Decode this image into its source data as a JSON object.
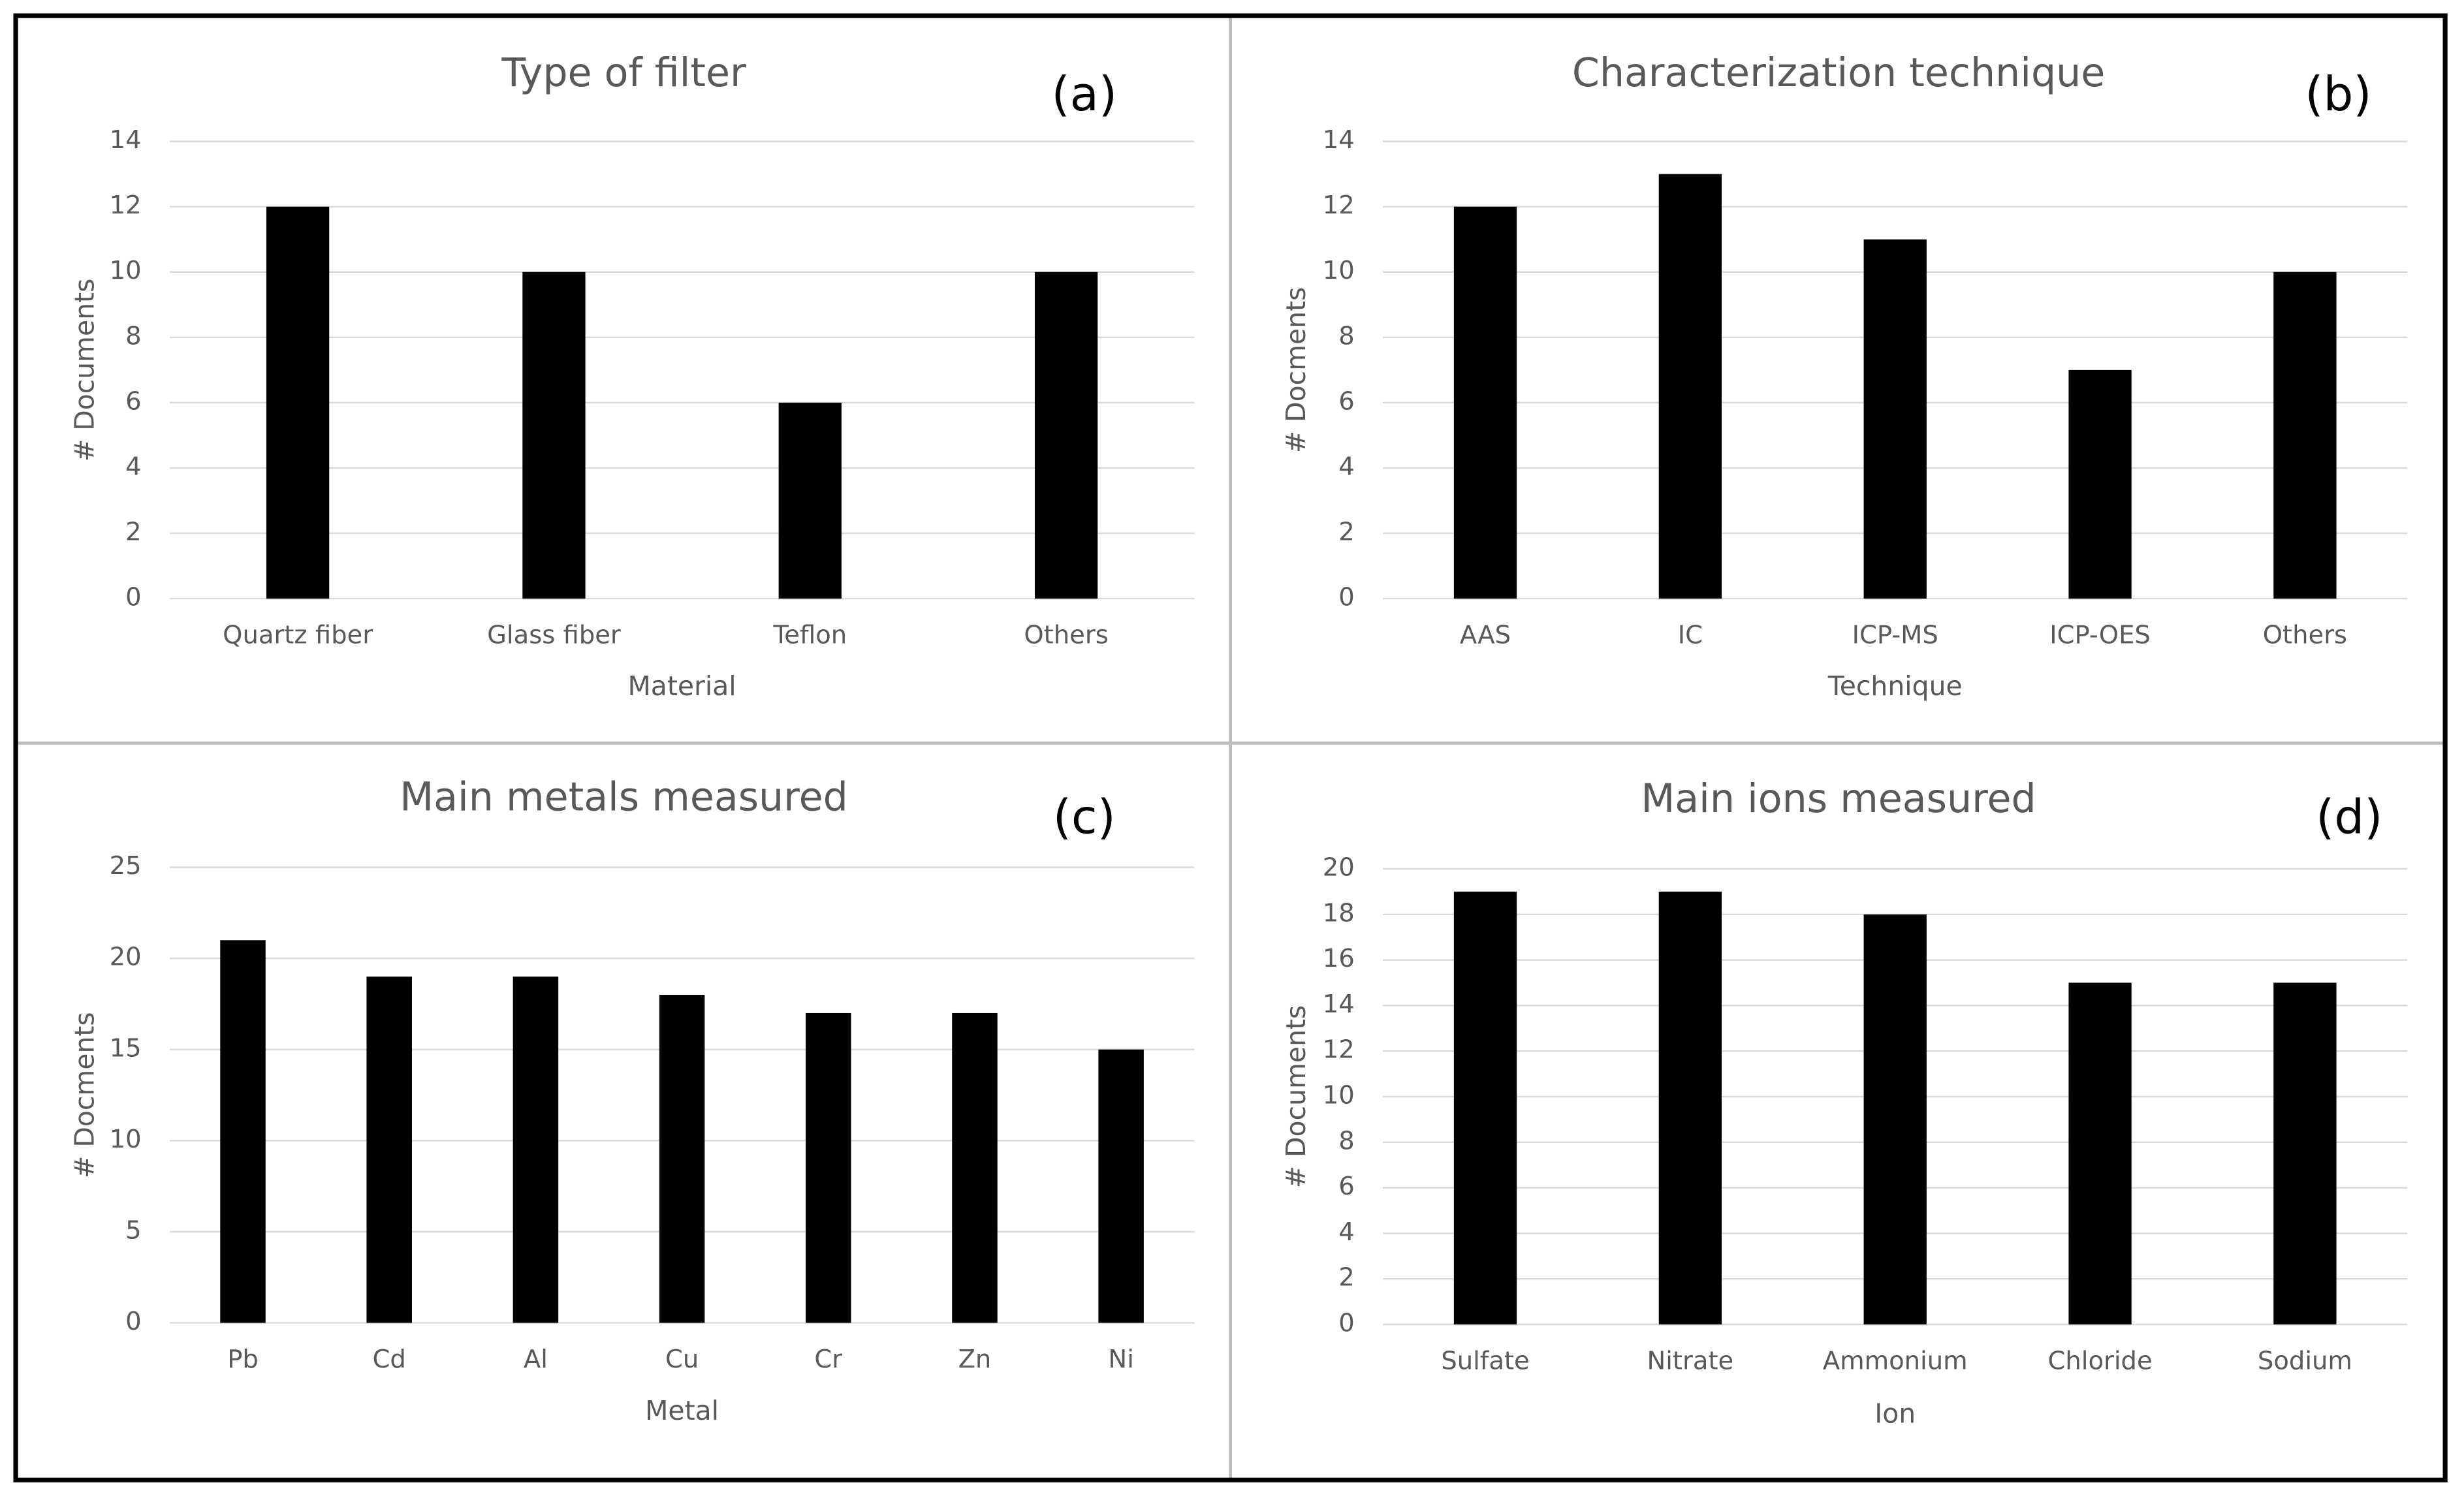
{
  "chart_data": [
    {
      "type": "bar",
      "title": "Type of filter",
      "label": "(a)",
      "x_label": "Material",
      "y_label": "# Documents",
      "categories": [
        "Quartz fiber",
        "Glass fiber",
        "Teflon",
        "Others"
      ],
      "values": [
        12,
        10,
        6,
        10
      ],
      "color": "#000000",
      "ylim": [
        0,
        14
      ],
      "yticks": [
        0,
        2,
        4,
        6,
        8,
        10,
        12,
        14
      ],
      "grid": true
    },
    {
      "type": "bar",
      "title": "Characterization technique",
      "label": "(b)",
      "x_label": "Technique",
      "y_label": "# Docments",
      "categories": [
        "AAS",
        "IC",
        "ICP-MS",
        "ICP-OES",
        "Others"
      ],
      "values": [
        12,
        13,
        11,
        7,
        10
      ],
      "color": "#000000",
      "ylim": [
        0,
        14
      ],
      "yticks": [
        0,
        2,
        4,
        6,
        8,
        10,
        12,
        14
      ],
      "grid": true
    },
    {
      "type": "bar",
      "title": "Main metals measured",
      "label": "(c)",
      "x_label": "Metal",
      "y_label": "# Docments",
      "categories": [
        "Pb",
        "Cd",
        "Al",
        "Cu",
        "Cr",
        "Zn",
        "Ni"
      ],
      "values": [
        21,
        19,
        19,
        18,
        17,
        17,
        15
      ],
      "color": "#000000",
      "ylim": [
        0,
        25
      ],
      "yticks": [
        0,
        5,
        10,
        15,
        20,
        25
      ],
      "grid": true
    },
    {
      "type": "bar",
      "title": "Main ions measured",
      "label": "(d)",
      "x_label": "Ion",
      "y_label": "# Documents",
      "categories": [
        "Sulfate",
        "Nitrate",
        "Ammonium",
        "Chloride",
        "Sodium"
      ],
      "values": [
        19,
        19,
        18,
        15,
        15
      ],
      "color": "#000000",
      "ylim": [
        0,
        20
      ],
      "yticks": [
        0,
        2,
        4,
        6,
        8,
        10,
        12,
        14,
        16,
        18,
        20
      ],
      "grid": true
    }
  ]
}
